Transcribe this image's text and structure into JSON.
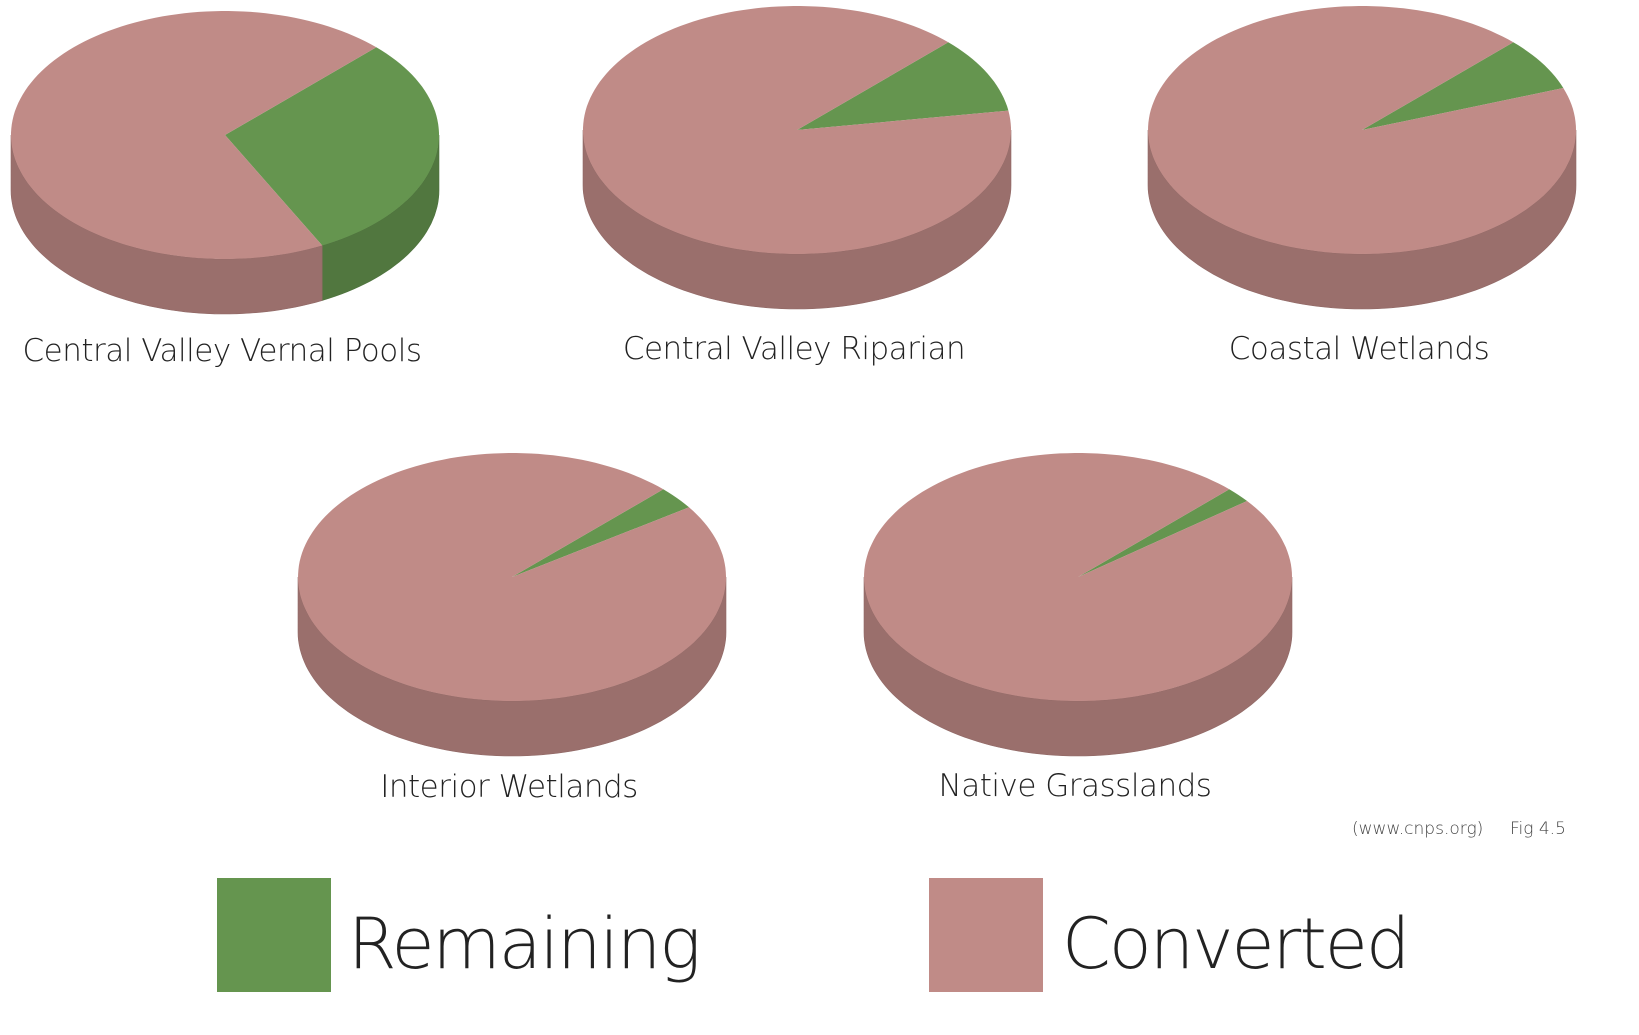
{
  "chart_data": [
    {
      "type": "pie",
      "title": "Central Valley Vernal Pools",
      "values": [
        30,
        70
      ]
    },
    {
      "type": "pie",
      "title": "Central Valley Riparian",
      "values": [
        10,
        90
      ]
    },
    {
      "type": "pie",
      "title": "Coastal Wetlands",
      "values": [
        7,
        93
      ]
    },
    {
      "type": "pie",
      "title": "Interior Wetlands",
      "values": [
        3,
        97
      ]
    },
    {
      "type": "pie",
      "title": "Native Grasslands",
      "values": [
        2,
        98
      ]
    }
  ],
  "legend": {
    "labels": [
      "Remaining",
      "Converted"
    ],
    "colors": [
      "#65954f",
      "#c08b87"
    ]
  },
  "source": "(www.cnps.org)",
  "figure": "Fig 4.5"
}
